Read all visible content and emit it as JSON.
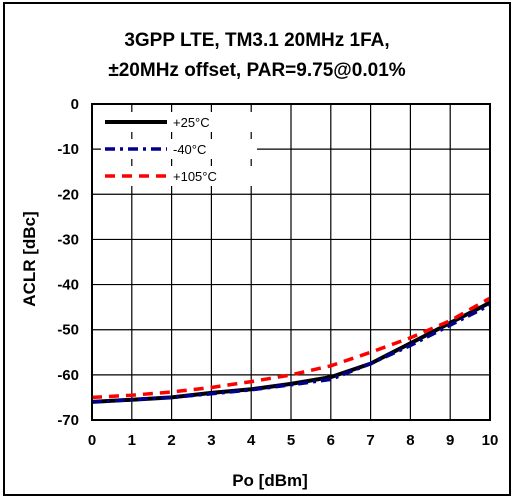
{
  "chart_data": {
    "type": "line",
    "title": [
      "3GPP LTE, TM3.1 20MHz 1FA,",
      "±20MHz offset, PAR=9.75@0.01%"
    ],
    "xlabel": "Po [dBm]",
    "ylabel": "ACLR [dBc]",
    "xlim": [
      0,
      10
    ],
    "ylim": [
      -70,
      0
    ],
    "xticks": [
      0,
      1,
      2,
      3,
      4,
      5,
      6,
      7,
      8,
      9,
      10
    ],
    "yticks": [
      0,
      -10,
      -20,
      -30,
      -40,
      -50,
      -60,
      -70
    ],
    "grid": true,
    "legend_position": "top-left",
    "series": [
      {
        "name": "+25°C",
        "color": "#000000",
        "style": "solid",
        "x": [
          0,
          1,
          2,
          3,
          4,
          5,
          6,
          7,
          8,
          9,
          10
        ],
        "y": [
          -66,
          -65.5,
          -65,
          -64,
          -63.2,
          -62,
          -60.5,
          -57.5,
          -53,
          -48.5,
          -44
        ]
      },
      {
        "name": "-40°C",
        "color": "#00008b",
        "style": "dashdot",
        "x": [
          0,
          1,
          2,
          3,
          4,
          5,
          6,
          7,
          8,
          9,
          10
        ],
        "y": [
          -66,
          -65.5,
          -65,
          -64.2,
          -63.3,
          -62.2,
          -61,
          -57.5,
          -53.5,
          -49,
          -44.5
        ]
      },
      {
        "name": "+105°C",
        "color": "#ff0000",
        "style": "dashed",
        "x": [
          0,
          1,
          2,
          3,
          4,
          5,
          6,
          7,
          8,
          9,
          10
        ],
        "y": [
          -65,
          -64.5,
          -63.8,
          -62.8,
          -61.5,
          -60,
          -58,
          -55,
          -51.8,
          -48,
          -43
        ]
      }
    ]
  }
}
